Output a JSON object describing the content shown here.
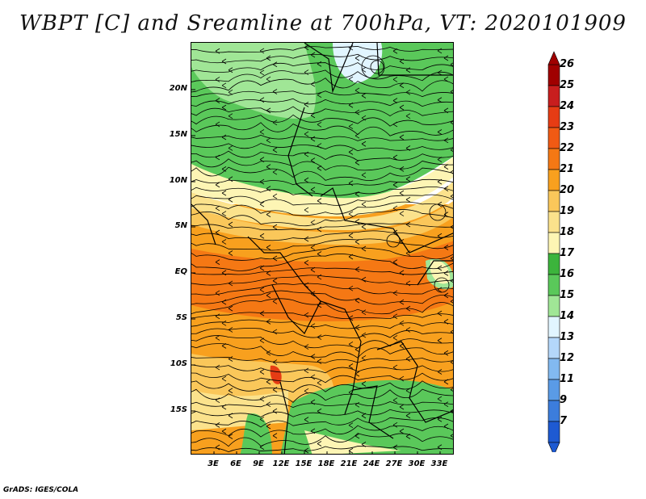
{
  "title": "WBPT [C] and Sreamline at 700hPa, VT: 2020101909",
  "credit": "GrADS: IGES/COLA",
  "lat_labels": [
    "20N",
    "15N",
    "10N",
    "5N",
    "EQ",
    "5S",
    "10S",
    "15S"
  ],
  "lon_labels": [
    "3E",
    "6E",
    "9E",
    "12E",
    "15E",
    "18E",
    "21E",
    "24E",
    "27E",
    "30E",
    "33E"
  ],
  "colorbar": {
    "levels": [
      "26",
      "25",
      "24",
      "23",
      "22",
      "21",
      "20",
      "19",
      "18",
      "17",
      "16",
      "15",
      "14",
      "13",
      "12",
      "11",
      "9",
      "7"
    ],
    "colors": [
      "#a00000",
      "#c81e1e",
      "#e63c14",
      "#f05a14",
      "#f57814",
      "#f8a01e",
      "#fac75a",
      "#fbe28c",
      "#fdf5b4",
      "#3cb43c",
      "#5ac85a",
      "#a0e696",
      "#e1f5ff",
      "#b4d7fa",
      "#82b9f0",
      "#5a9be6",
      "#3c7ddc",
      "#1e5ad2"
    ]
  },
  "legend_colors": {
    "green_dark": "#3cb43c",
    "green": "#5ac85a",
    "green_light": "#a0e696",
    "yellow_pale": "#fdf5b4",
    "yellow": "#fbe28c",
    "orange_light": "#fac75a",
    "orange": "#f8a01e",
    "orange_dark": "#f57814",
    "red": "#e63c14",
    "cyan_pale": "#e1f5ff"
  }
}
